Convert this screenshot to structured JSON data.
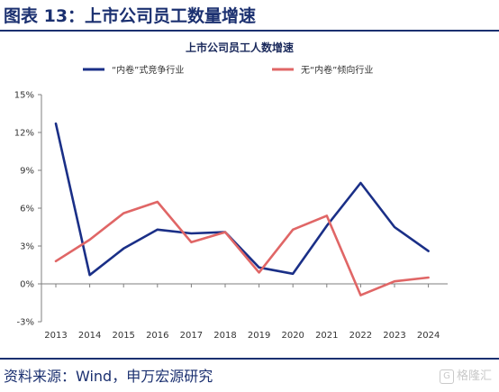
{
  "figure": {
    "title": "图表 13：上市公司员工数量增速",
    "source": "资料来源：Wind，申万宏源研究",
    "watermark": "格隆汇",
    "watermark_icon": "G"
  },
  "colors": {
    "series_blue": "#1a2f87",
    "series_red": "#e06666",
    "axis": "#7f7f7f",
    "title": "#1b3070"
  },
  "chart_data": {
    "type": "line",
    "title": "上市公司员工人数增速",
    "categories": [
      "2013",
      "2014",
      "2015",
      "2016",
      "2017",
      "2018",
      "2019",
      "2020",
      "2021",
      "2022",
      "2023",
      "2024"
    ],
    "y_ticks": [
      "15%",
      "12%",
      "9%",
      "6%",
      "3%",
      "0%",
      "-3%"
    ],
    "ylim": [
      -3,
      15
    ],
    "grid": false,
    "legend_position": "top",
    "series": [
      {
        "name": "“内卷”式竞争行业",
        "color": "#1a2f87",
        "values": [
          12.7,
          0.7,
          2.8,
          4.3,
          4.0,
          4.1,
          1.3,
          0.8,
          4.6,
          8.0,
          4.5,
          2.6
        ]
      },
      {
        "name": "无“内卷”倾向行业",
        "color": "#e06666",
        "values": [
          1.8,
          3.5,
          5.6,
          6.5,
          3.3,
          4.1,
          0.9,
          4.3,
          5.4,
          -0.9,
          0.2,
          0.5
        ]
      }
    ]
  }
}
